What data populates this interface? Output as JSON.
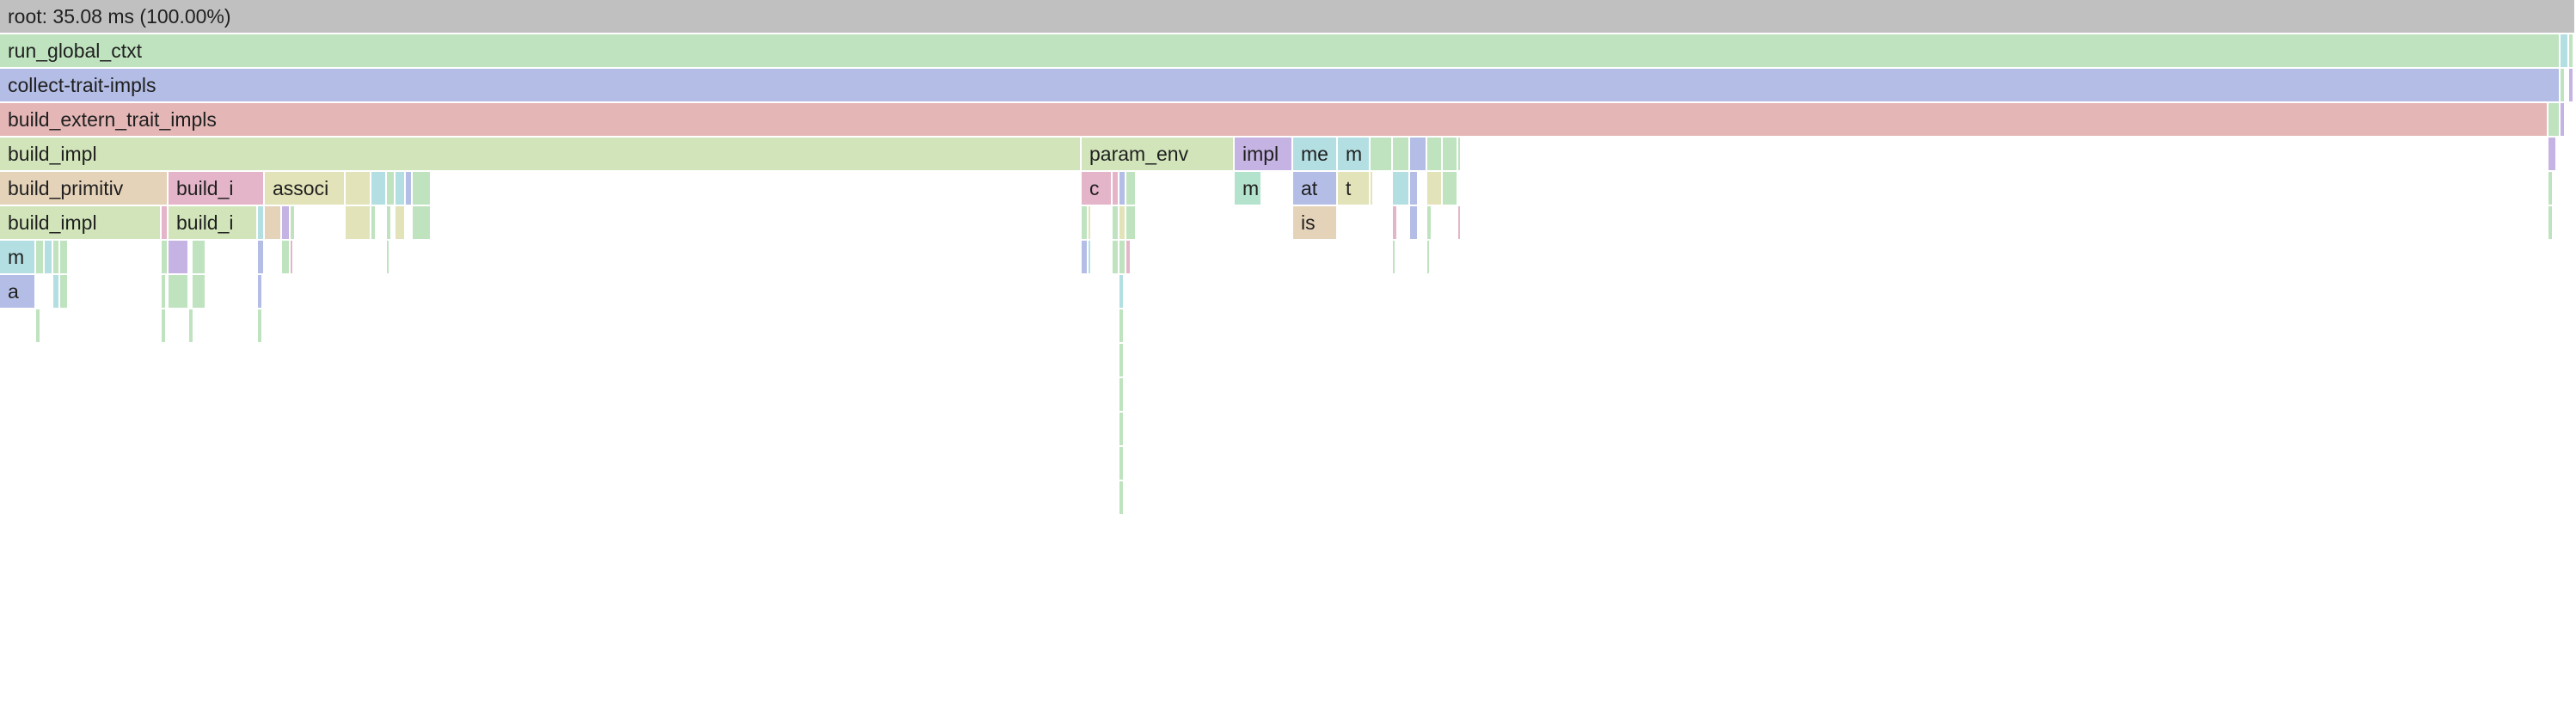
{
  "root_label": "root: 35.08 ms (100.00%)",
  "palette": {
    "gray": "#c0c0c0",
    "green": "#bfe3bf",
    "blue": "#b4bde5",
    "red": "#e4b6b6",
    "lightgreen": "#d2e5ba",
    "tan": "#e5d3b9",
    "pink": "#e4b5c8",
    "cyan": "#b3dfe3",
    "purple": "#c5b3e3",
    "mint": "#b3e3cc",
    "khaki": "#e2e3b8"
  },
  "frames": [
    {
      "label": "run_global_ctxt",
      "color": "green"
    },
    {
      "label": "collect-trait-impls",
      "color": "blue"
    },
    {
      "label": "build_extern_trait_impls",
      "color": "red"
    },
    {
      "label": "build_impl",
      "color": "lightgreen"
    },
    {
      "label": "param_env",
      "color": "lightgreen"
    },
    {
      "label": "impl",
      "color": "purple"
    },
    {
      "label": "me",
      "color": "cyan"
    },
    {
      "label": "m",
      "color": "cyan"
    },
    {
      "label": "build_primitiv",
      "color": "tan"
    },
    {
      "label": "build_i",
      "color": "pink"
    },
    {
      "label": "associ",
      "color": "khaki"
    },
    {
      "label": "c",
      "color": "pink"
    },
    {
      "label": "m",
      "color": "mint"
    },
    {
      "label": "at",
      "color": "blue"
    },
    {
      "label": "t",
      "color": "khaki"
    },
    {
      "label": "build_impl",
      "color": "lightgreen"
    },
    {
      "label": "build_i",
      "color": "lightgreen"
    },
    {
      "label": "is",
      "color": "tan"
    },
    {
      "label": "m",
      "color": "cyan"
    },
    {
      "label": "a",
      "color": "blue"
    }
  ],
  "minor_frames": [
    {
      "color": "cyan"
    },
    {
      "color": "green"
    },
    {
      "color": "green"
    },
    {
      "color": "purple"
    },
    {
      "color": "green"
    },
    {
      "color": "purple"
    },
    {
      "color": "green"
    },
    {
      "color": "green"
    },
    {
      "color": "blue"
    },
    {
      "color": "green"
    },
    {
      "color": "green"
    },
    {
      "color": "green"
    },
    {
      "color": "purple"
    },
    {
      "color": "khaki"
    },
    {
      "color": "cyan"
    },
    {
      "color": "green"
    },
    {
      "color": "cyan"
    },
    {
      "color": "blue"
    },
    {
      "color": "green"
    },
    {
      "color": "pink"
    },
    {
      "color": "blue"
    },
    {
      "color": "green"
    },
    {
      "color": "khaki"
    },
    {
      "color": "cyan"
    },
    {
      "color": "blue"
    },
    {
      "color": "khaki"
    },
    {
      "color": "green"
    },
    {
      "color": "green"
    },
    {
      "color": "pink"
    },
    {
      "color": "cyan"
    },
    {
      "color": "tan"
    },
    {
      "color": "purple"
    },
    {
      "color": "green"
    },
    {
      "color": "khaki"
    },
    {
      "color": "green"
    },
    {
      "color": "green"
    },
    {
      "color": "khaki"
    },
    {
      "color": "green"
    },
    {
      "color": "green"
    },
    {
      "color": "khaki"
    },
    {
      "color": "green"
    },
    {
      "color": "khaki"
    },
    {
      "color": "green"
    },
    {
      "color": "pink"
    },
    {
      "color": "blue"
    },
    {
      "color": "green"
    },
    {
      "color": "pink"
    },
    {
      "color": "green"
    },
    {
      "color": "cyan"
    },
    {
      "color": "green"
    },
    {
      "color": "green"
    },
    {
      "color": "green"
    },
    {
      "color": "purple"
    },
    {
      "color": "green"
    },
    {
      "color": "blue"
    },
    {
      "color": "green"
    },
    {
      "color": "pink"
    },
    {
      "color": "green"
    },
    {
      "color": "blue"
    },
    {
      "color": "cyan"
    },
    {
      "color": "green"
    },
    {
      "color": "green"
    },
    {
      "color": "pink"
    },
    {
      "color": "cyan"
    },
    {
      "color": "green"
    },
    {
      "color": "green"
    },
    {
      "color": "green"
    },
    {
      "color": "green"
    },
    {
      "color": "blue"
    },
    {
      "color": "cyan"
    },
    {
      "color": "green"
    },
    {
      "color": "green"
    },
    {
      "color": "green"
    },
    {
      "color": "green"
    },
    {
      "color": "green"
    },
    {
      "color": "green"
    },
    {
      "color": "green"
    },
    {
      "color": "green"
    },
    {
      "color": "green"
    },
    {
      "color": "green"
    },
    {
      "color": "green"
    },
    {
      "color": "green"
    },
    {
      "color": "green"
    }
  ]
}
